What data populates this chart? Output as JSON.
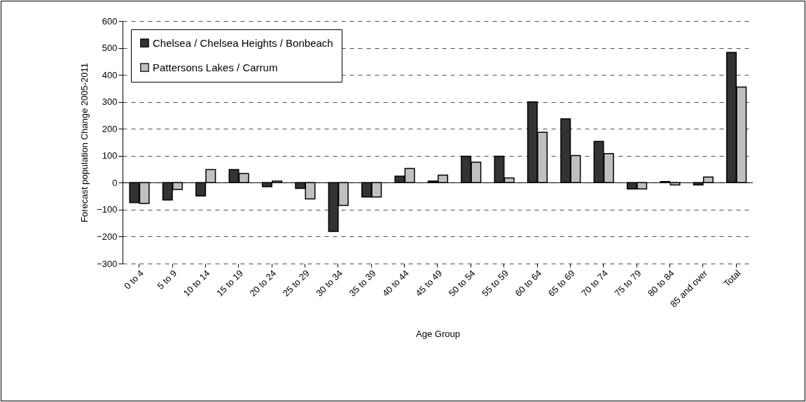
{
  "chart_data": {
    "type": "bar",
    "xlabel": "Age Group",
    "ylabel": "Forecast population Change 2005-2011",
    "categories": [
      "0 to 4",
      "5 to 9",
      "10 to 14",
      "15 to 19",
      "20 to 24",
      "25 to 29",
      "30 to 34",
      "35 to 39",
      "40 to 44",
      "45 to 49",
      "50 to 54",
      "55 to 59",
      "60 to 64",
      "65 to 69",
      "70 to 74",
      "75 to 79",
      "80 to 84",
      "85 and over",
      "Total"
    ],
    "series": [
      {
        "name": "Chelsea / Chelsea Heights / Bonbeach",
        "color": "#333333",
        "values": [
          -74,
          -64,
          -49,
          49,
          -15,
          -21,
          -181,
          -53,
          24,
          6,
          98,
          98,
          300,
          237,
          153,
          -23,
          4,
          -8,
          483
        ]
      },
      {
        "name": "Pattersons Lakes / Carrum",
        "color": "#c0c0c0",
        "values": [
          -77,
          -25,
          49,
          34,
          6,
          -60,
          -84,
          -53,
          53,
          28,
          76,
          18,
          187,
          101,
          108,
          -23,
          -8,
          21,
          355
        ]
      }
    ],
    "ylim": [
      -300,
      600
    ],
    "yticks": [
      -300,
      -200,
      -100,
      0,
      100,
      200,
      300,
      400,
      500,
      600
    ],
    "grid": "y",
    "legend": "top left"
  }
}
